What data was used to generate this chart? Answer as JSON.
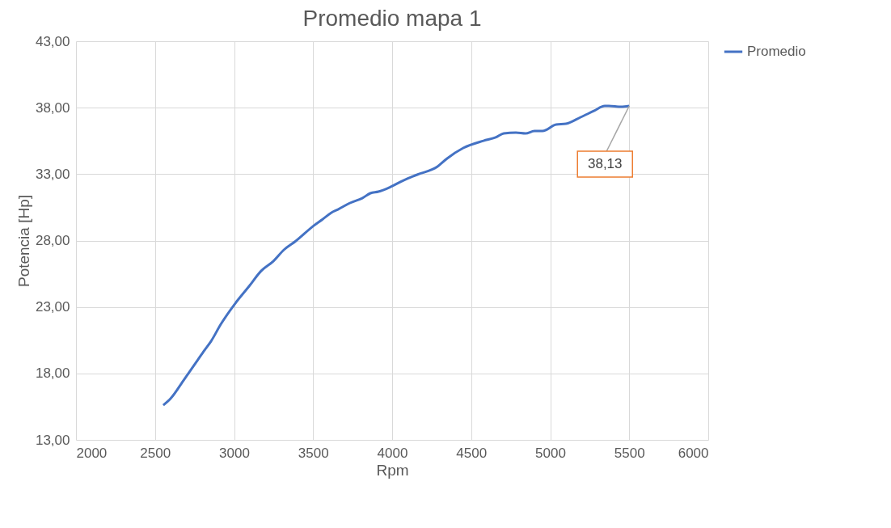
{
  "chart_data": {
    "type": "line",
    "title": "Promedio mapa 1",
    "xlabel": "Rpm",
    "ylabel": "Potencia [Hp]",
    "x": [
      2552,
      2598,
      2685,
      2767,
      2813,
      2854,
      2916,
      3008,
      3095,
      3171,
      3248,
      3315,
      3391,
      3504,
      3560,
      3616,
      3657,
      3734,
      3811,
      3862,
      3913,
      3990,
      4072,
      4159,
      4287,
      4348,
      4450,
      4578,
      4655,
      4706,
      4783,
      4844,
      4900,
      4951,
      5038,
      5100,
      5192,
      5279,
      5345,
      5371,
      5448,
      5500
    ],
    "series": [
      {
        "name": "Promedio",
        "color": "#4472c4",
        "values": [
          15.61,
          16.1,
          17.56,
          18.96,
          19.75,
          20.42,
          21.7,
          23.28,
          24.56,
          25.71,
          26.44,
          27.3,
          27.97,
          29.12,
          29.6,
          30.1,
          30.34,
          30.83,
          31.19,
          31.56,
          31.68,
          32.04,
          32.53,
          32.96,
          33.57,
          34.18,
          34.97,
          35.51,
          35.76,
          36.06,
          36.12,
          36.06,
          36.24,
          36.24,
          36.73,
          36.79,
          37.28,
          37.77,
          38.13,
          38.13,
          38.07,
          38.13
        ]
      }
    ],
    "xlim": [
      2000,
      6000
    ],
    "xticks": [
      2000,
      2500,
      3000,
      3500,
      4000,
      4500,
      5000,
      5500,
      6000
    ],
    "ylim": [
      13,
      43
    ],
    "yticks": [
      {
        "value": 13,
        "label": "13,00"
      },
      {
        "value": 18,
        "label": "18,00"
      },
      {
        "value": 23,
        "label": "23,00"
      },
      {
        "value": 28,
        "label": "28,00"
      },
      {
        "value": 33,
        "label": "33,00"
      },
      {
        "value": 38,
        "label": "38,00"
      },
      {
        "value": 43,
        "label": "43,00"
      }
    ],
    "annotations": [
      {
        "text": "38,13",
        "x": 5500,
        "y": 38.13
      }
    ],
    "grid": true,
    "legend": "right",
    "marker": "none",
    "line_style": "solid"
  }
}
